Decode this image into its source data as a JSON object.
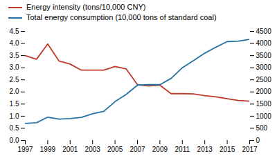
{
  "chart_data": {
    "type": "line",
    "x": [
      1997,
      1998,
      1999,
      2000,
      2001,
      2002,
      2003,
      2004,
      2005,
      2006,
      2007,
      2008,
      2009,
      2010,
      2011,
      2012,
      2013,
      2014,
      2015,
      2016,
      2017
    ],
    "series": [
      {
        "name": "Energy intensity (tons/10,000 CNY)",
        "color": "#c0392b",
        "axis": "y",
        "values": [
          3.5,
          3.35,
          3.98,
          3.28,
          3.15,
          2.9,
          2.9,
          2.9,
          3.05,
          2.95,
          2.3,
          2.25,
          2.28,
          1.93,
          1.93,
          1.92,
          1.85,
          1.8,
          1.72,
          1.65,
          1.62
        ]
      },
      {
        "name": "Total energy consumption (10,000 tons of standard coal)",
        "color": "#2472a4",
        "axis": "y2",
        "values": [
          700,
          730,
          960,
          880,
          900,
          950,
          1100,
          1200,
          1600,
          1900,
          2280,
          2300,
          2300,
          2560,
          3000,
          3300,
          3600,
          3850,
          4080,
          4100,
          4170
        ]
      }
    ],
    "xlim": [
      1997,
      2017
    ],
    "xticks": [
      1997,
      1999,
      2001,
      2003,
      2005,
      2007,
      2009,
      2011,
      2013,
      2015,
      2017
    ],
    "ylim": [
      0,
      4.5
    ],
    "yticks": [
      {
        "value": 0,
        "label": "0.0"
      },
      0.5,
      {
        "value": 1,
        "label": "1.0"
      },
      1.5,
      {
        "value": 2,
        "label": "2.0"
      },
      2.5,
      {
        "value": 3,
        "label": "3.0"
      },
      3.5,
      {
        "value": 4,
        "label": "4.0"
      },
      4.5
    ],
    "y2lim": [
      0,
      4500
    ],
    "y2ticks": [
      0,
      500,
      1000,
      1500,
      2000,
      2500,
      3000,
      3500,
      4000,
      4500
    ],
    "grid": false,
    "legend": "top"
  }
}
